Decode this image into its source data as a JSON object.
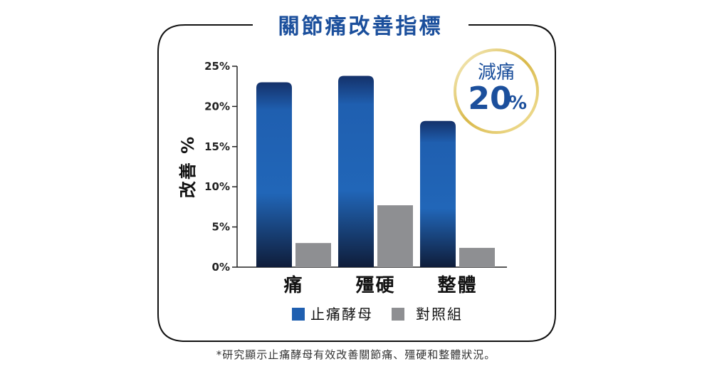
{
  "chart_data": {
    "type": "bar",
    "title": "關節痛改善指標",
    "ylabel": "改善 %",
    "xlabel": "",
    "ylim": [
      0,
      25
    ],
    "yticks": [
      0,
      5,
      10,
      15,
      20,
      25
    ],
    "ytick_labels": [
      "0%",
      "5%",
      "10%",
      "15%",
      "20%",
      "25%"
    ],
    "categories": [
      "痛",
      "殭硬",
      "整體"
    ],
    "series": [
      {
        "name": "止痛酵母",
        "values": [
          23.0,
          23.8,
          18.2
        ],
        "color": "#1f5fb0"
      },
      {
        "name": "對照組",
        "values": [
          3.0,
          7.7,
          2.4
        ],
        "color": "#8e8f92"
      }
    ],
    "legend_position": "bottom",
    "grid": false,
    "badge": {
      "top": "減痛",
      "value": "20",
      "unit": "%"
    }
  },
  "footnote": "*研究顯示止痛酵母有效改善關節痛、殭硬和整體狀況。",
  "colors": {
    "accent": "#1b4f9c",
    "bar_blue_top": "#2166b8",
    "bar_blue_bottom": "#0f1d3a",
    "bar_gray": "#8e8f92",
    "badge_ring": "#d9b94a"
  }
}
